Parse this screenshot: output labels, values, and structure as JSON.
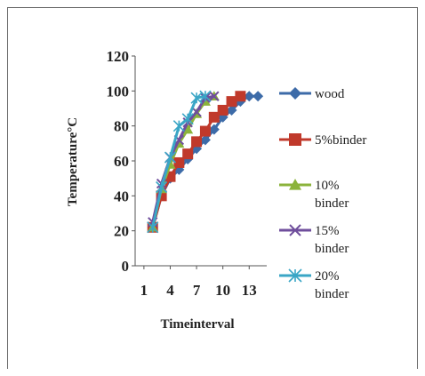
{
  "chart_data": {
    "type": "line",
    "title": "",
    "xlabel": "Timeinterval",
    "ylabel": "Temperature°C",
    "ylim": [
      0,
      120
    ],
    "yticks": [
      "0",
      "20",
      "40",
      "60",
      "80",
      "100",
      "120"
    ],
    "xlim": [
      0,
      15
    ],
    "xticks": [
      "1",
      "4",
      "7",
      "10",
      "13"
    ],
    "xtick_values": [
      1,
      4,
      7,
      10,
      13
    ],
    "grid": false,
    "legend_position": "right",
    "series": [
      {
        "name": "wood",
        "legend_lines": [
          "wood"
        ],
        "color": "#3d6ba8",
        "marker": "diamond",
        "x": [
          2,
          3,
          4,
          5,
          6,
          7,
          8,
          9,
          10,
          11,
          12,
          13,
          14
        ],
        "y": [
          22,
          40,
          50,
          55,
          61,
          67,
          72,
          78,
          85,
          89,
          94,
          97,
          97
        ]
      },
      {
        "name": "5%binder",
        "legend_lines": [
          "5%binder"
        ],
        "color": "#c0392b",
        "marker": "square",
        "x": [
          2,
          3,
          4,
          5,
          6,
          7,
          8,
          9,
          10,
          11,
          12
        ],
        "y": [
          22,
          40,
          51,
          59,
          64,
          71,
          77,
          85,
          89,
          94,
          97
        ]
      },
      {
        "name": "10% binder",
        "legend_lines": [
          "10%",
          "binder"
        ],
        "color": "#8bb33b",
        "marker": "triangle",
        "x": [
          2,
          3,
          4,
          5,
          6,
          7,
          8,
          9
        ],
        "y": [
          22,
          44,
          58,
          70,
          78,
          87,
          94,
          97
        ]
      },
      {
        "name": "15% binder",
        "legend_lines": [
          "15%",
          "binder"
        ],
        "color": "#6f4e9c",
        "marker": "x",
        "x": [
          2,
          3,
          4,
          5,
          6,
          7,
          8,
          9
        ],
        "y": [
          25,
          47,
          62,
          72,
          82,
          88,
          96,
          97
        ]
      },
      {
        "name": "20% binder",
        "legend_lines": [
          "20%",
          "binder"
        ],
        "color": "#3aa6c6",
        "marker": "star",
        "x": [
          2,
          3,
          4,
          5,
          6,
          7,
          8
        ],
        "y": [
          22,
          45,
          62,
          80,
          84,
          96,
          97
        ]
      }
    ]
  }
}
